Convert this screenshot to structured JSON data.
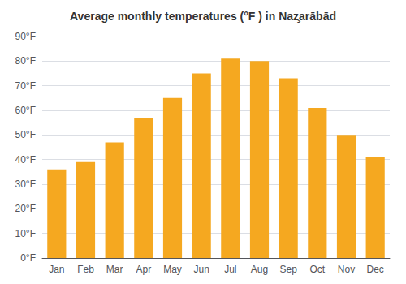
{
  "chart_data": {
    "type": "bar",
    "title": "Average monthly temperatures (°F ) in Naz̧arābād",
    "categories": [
      "Jan",
      "Feb",
      "Mar",
      "Apr",
      "May",
      "Jun",
      "Jul",
      "Aug",
      "Sep",
      "Oct",
      "Nov",
      "Dec"
    ],
    "values": [
      36,
      39,
      47,
      57,
      65,
      75,
      81,
      80,
      73,
      61,
      50,
      41
    ],
    "color": "#f5a820",
    "ylim": [
      0,
      90
    ],
    "yticks": [
      {
        "value": 0,
        "label": "0°F"
      },
      {
        "value": 10,
        "label": "10°F"
      },
      {
        "value": 20,
        "label": "20°F"
      },
      {
        "value": 30,
        "label": "30°F"
      },
      {
        "value": 40,
        "label": "40°F"
      },
      {
        "value": 50,
        "label": "50°F"
      },
      {
        "value": 60,
        "label": "60°F"
      },
      {
        "value": 70,
        "label": "70°F"
      },
      {
        "value": 80,
        "label": "80°F"
      },
      {
        "value": 90,
        "label": "90°F"
      }
    ],
    "grid": true
  }
}
